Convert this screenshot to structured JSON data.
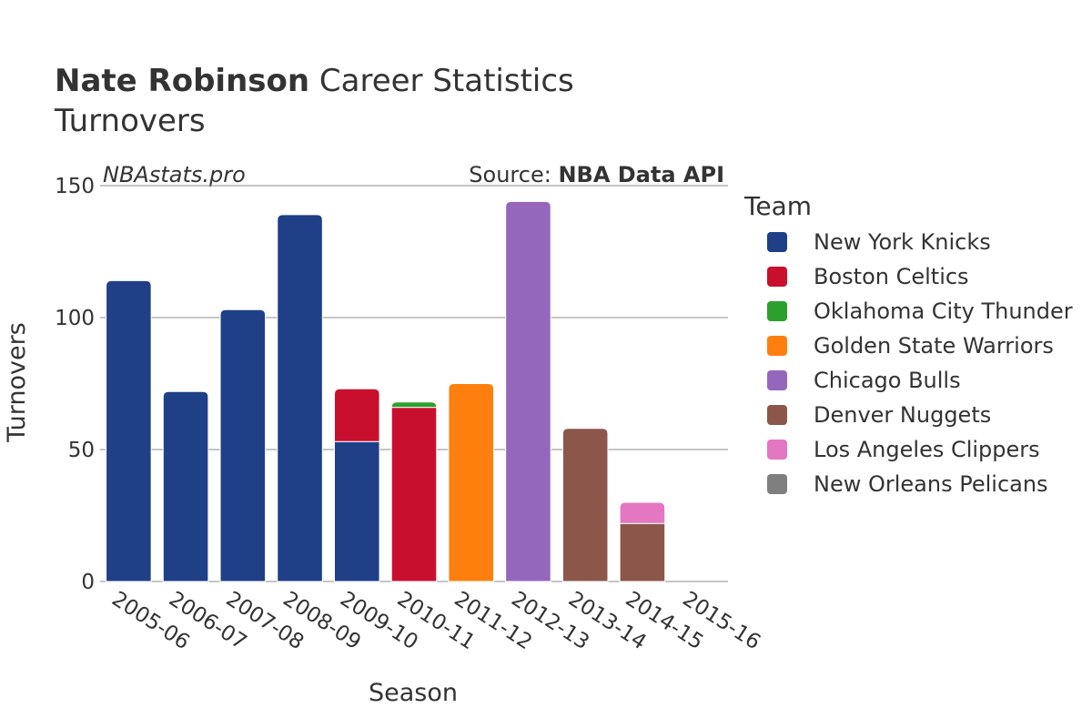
{
  "header": {
    "title_bold": "Nate Robinson",
    "title_rest": " Career Statistics",
    "subtitle": "Turnovers"
  },
  "watermark": "NBAstats.pro",
  "source": {
    "prefix": "Source: ",
    "name": "NBA Data API"
  },
  "chart_data": {
    "type": "bar",
    "stacked": true,
    "xlabel": "Season",
    "ylabel": "Turnovers",
    "ylim": [
      0,
      150
    ],
    "yticks": [
      0,
      50,
      100,
      150
    ],
    "grid": true,
    "legend_title": "Team",
    "legend_position": "right",
    "categories": [
      "2005-06",
      "2006-07",
      "2007-08",
      "2008-09",
      "2009-10",
      "2010-11",
      "2011-12",
      "2012-13",
      "2013-14",
      "2014-15",
      "2015-16"
    ],
    "series": [
      {
        "name": "New York Knicks",
        "color": "#1f3f87",
        "values": [
          114,
          72,
          103,
          139,
          53,
          0,
          0,
          0,
          0,
          0,
          0
        ]
      },
      {
        "name": "Boston Celtics",
        "color": "#c8102e",
        "values": [
          0,
          0,
          0,
          0,
          20,
          66,
          0,
          0,
          0,
          0,
          0
        ]
      },
      {
        "name": "Oklahoma City Thunder",
        "color": "#2ca02c",
        "values": [
          0,
          0,
          0,
          0,
          0,
          2,
          0,
          0,
          0,
          0,
          0
        ]
      },
      {
        "name": "Golden State Warriors",
        "color": "#ff7f0e",
        "values": [
          0,
          0,
          0,
          0,
          0,
          0,
          75,
          0,
          0,
          0,
          0
        ]
      },
      {
        "name": "Chicago Bulls",
        "color": "#9467bd",
        "values": [
          0,
          0,
          0,
          0,
          0,
          0,
          0,
          144,
          0,
          0,
          0
        ]
      },
      {
        "name": "Denver Nuggets",
        "color": "#8c564b",
        "values": [
          0,
          0,
          0,
          0,
          0,
          0,
          0,
          0,
          58,
          22,
          0
        ]
      },
      {
        "name": "Los Angeles Clippers",
        "color": "#e377c2",
        "values": [
          0,
          0,
          0,
          0,
          0,
          0,
          0,
          0,
          0,
          8,
          0
        ]
      },
      {
        "name": "New Orleans Pelicans",
        "color": "#7f7f7f",
        "values": [
          0,
          0,
          0,
          0,
          0,
          0,
          0,
          0,
          0,
          0,
          0
        ]
      }
    ]
  }
}
